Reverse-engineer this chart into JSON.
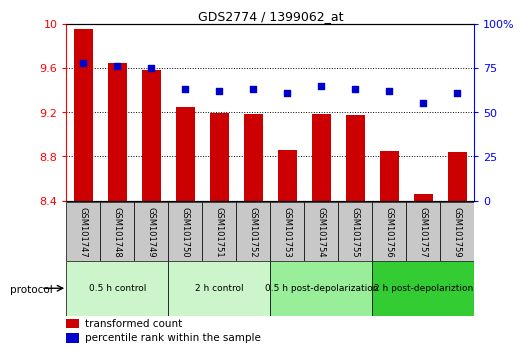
{
  "title": "GDS2774 / 1399062_at",
  "samples": [
    "GSM101747",
    "GSM101748",
    "GSM101749",
    "GSM101750",
    "GSM101751",
    "GSM101752",
    "GSM101753",
    "GSM101754",
    "GSM101755",
    "GSM101756",
    "GSM101757",
    "GSM101759"
  ],
  "bar_values": [
    9.95,
    9.64,
    9.58,
    9.25,
    9.19,
    9.18,
    8.86,
    9.18,
    9.17,
    8.85,
    8.46,
    8.84
  ],
  "percentile_values": [
    78,
    76,
    75,
    63,
    62,
    63,
    61,
    65,
    63,
    62,
    55,
    61
  ],
  "bar_color": "#cc0000",
  "percentile_color": "#0000cc",
  "ylim_left": [
    8.4,
    10.0
  ],
  "ylim_right": [
    0,
    100
  ],
  "yticks_left": [
    8.4,
    8.8,
    9.2,
    9.6,
    10.0
  ],
  "ytick_labels_left": [
    "8.4",
    "8.8",
    "9.2",
    "9.6",
    "10"
  ],
  "yticks_right": [
    0,
    25,
    50,
    75,
    100
  ],
  "ytick_labels_right": [
    "0",
    "25",
    "50",
    "75",
    "100%"
  ],
  "dotted_lines": [
    8.8,
    9.2,
    9.6
  ],
  "groups": [
    {
      "label": "0.5 h control",
      "start": 0,
      "end": 3,
      "color": "#ccf5cc"
    },
    {
      "label": "2 h control",
      "start": 3,
      "end": 6,
      "color": "#ccf5cc"
    },
    {
      "label": "0.5 h post-depolarization",
      "start": 6,
      "end": 9,
      "color": "#99ee99"
    },
    {
      "label": "2 h post-depolariztion",
      "start": 9,
      "end": 12,
      "color": "#33cc33"
    }
  ],
  "protocol_label": "protocol",
  "legend_red_label": "transformed count",
  "legend_blue_label": "percentile rank within the sample",
  "tick_area_color": "#c8c8c8",
  "bar_width": 0.55
}
